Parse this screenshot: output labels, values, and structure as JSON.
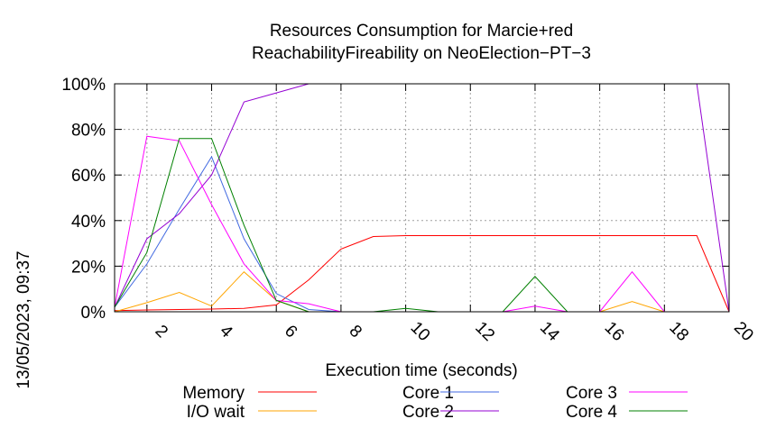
{
  "chart_data": {
    "type": "line",
    "title": [
      "Resources Consumption for Marcie+red",
      "ReachabilityFireability on NeoElection−PT−3"
    ],
    "xlabel": "Execution time (seconds)",
    "ylabel": "",
    "timestamp": "13/05/2023, 09:37",
    "xlim": [
      1,
      20
    ],
    "ylim": [
      0,
      100
    ],
    "xticks": [
      2,
      4,
      6,
      8,
      10,
      12,
      14,
      16,
      18,
      20
    ],
    "yticks": [
      0,
      20,
      40,
      60,
      80,
      100
    ],
    "ytick_labels": [
      "0%",
      "20%",
      "40%",
      "60%",
      "80%",
      "100%"
    ],
    "grid": true,
    "legend_position": "bottom",
    "series": [
      {
        "name": "Memory",
        "color": "#ff0000",
        "points": [
          [
            1,
            0.5
          ],
          [
            2,
            0.8
          ],
          [
            3,
            1
          ],
          [
            4,
            1.2
          ],
          [
            5,
            1.5
          ],
          [
            6,
            3
          ],
          [
            7,
            14
          ],
          [
            8,
            27.5
          ],
          [
            9,
            33
          ],
          [
            10,
            33.4
          ],
          [
            11,
            33.4
          ],
          [
            12,
            33.4
          ],
          [
            13,
            33.4
          ],
          [
            14,
            33.4
          ],
          [
            15,
            33.4
          ],
          [
            16,
            33.4
          ],
          [
            17,
            33.4
          ],
          [
            18,
            33.4
          ],
          [
            19,
            33.4
          ],
          [
            20,
            0
          ]
        ]
      },
      {
        "name": "I/O wait",
        "color": "#ffa500",
        "points": [
          [
            1,
            0
          ],
          [
            2,
            4
          ],
          [
            3,
            8.5
          ],
          [
            4,
            2.5
          ],
          [
            5,
            17.5
          ],
          [
            6,
            5
          ],
          [
            7,
            0
          ],
          [
            8,
            0
          ],
          [
            9,
            0
          ],
          [
            10,
            0
          ],
          [
            11,
            0
          ],
          [
            12,
            0
          ],
          [
            13,
            0
          ],
          [
            14,
            0
          ],
          [
            15,
            0
          ],
          [
            16,
            0
          ],
          [
            17,
            4.5
          ],
          [
            18,
            0
          ],
          [
            19,
            0
          ],
          [
            20,
            0
          ]
        ]
      },
      {
        "name": "Core 1",
        "color": "#4169e1",
        "points": [
          [
            1,
            2
          ],
          [
            2,
            21
          ],
          [
            3,
            45
          ],
          [
            4,
            68
          ],
          [
            5,
            32
          ],
          [
            6,
            8
          ],
          [
            7,
            1
          ],
          [
            8,
            0
          ],
          [
            9,
            0
          ],
          [
            10,
            0
          ],
          [
            11,
            0
          ],
          [
            12,
            0
          ],
          [
            13,
            0
          ],
          [
            14,
            0
          ],
          [
            15,
            0
          ],
          [
            16,
            0
          ],
          [
            17,
            0
          ],
          [
            18,
            0
          ],
          [
            19,
            0
          ],
          [
            20,
            0
          ]
        ]
      },
      {
        "name": "Core 2",
        "color": "#9400d3",
        "points": [
          [
            1,
            2
          ],
          [
            2,
            32
          ],
          [
            3,
            43
          ],
          [
            4,
            60
          ],
          [
            5,
            92
          ],
          [
            6,
            96
          ],
          [
            7,
            100
          ],
          [
            8,
            100
          ],
          [
            9,
            100
          ],
          [
            10,
            100
          ],
          [
            11,
            100
          ],
          [
            12,
            100
          ],
          [
            13,
            100
          ],
          [
            14,
            100
          ],
          [
            15,
            100
          ],
          [
            16,
            100
          ],
          [
            17,
            100
          ],
          [
            18,
            100
          ],
          [
            19,
            100
          ],
          [
            20,
            0
          ]
        ]
      },
      {
        "name": "Core 3",
        "color": "#ff00ff",
        "points": [
          [
            1,
            2
          ],
          [
            2,
            77
          ],
          [
            3,
            75
          ],
          [
            4,
            47
          ],
          [
            5,
            21
          ],
          [
            6,
            5
          ],
          [
            7,
            3.5
          ],
          [
            8,
            0
          ],
          [
            9,
            0
          ],
          [
            10,
            0
          ],
          [
            11,
            0
          ],
          [
            12,
            0
          ],
          [
            13,
            0
          ],
          [
            14,
            2.5
          ],
          [
            15,
            0
          ],
          [
            16,
            0
          ],
          [
            17,
            17.5
          ],
          [
            18,
            0
          ],
          [
            19,
            0
          ],
          [
            20,
            0
          ]
        ]
      },
      {
        "name": "Core 4",
        "color": "#008000",
        "points": [
          [
            1,
            2
          ],
          [
            2,
            26
          ],
          [
            3,
            76
          ],
          [
            4,
            76
          ],
          [
            5,
            38
          ],
          [
            6,
            5
          ],
          [
            7,
            0
          ],
          [
            8,
            0
          ],
          [
            9,
            0
          ],
          [
            10,
            1.5
          ],
          [
            11,
            0
          ],
          [
            12,
            0
          ],
          [
            13,
            0
          ],
          [
            14,
            15.5
          ],
          [
            15,
            0
          ],
          [
            16,
            0
          ],
          [
            17,
            0
          ],
          [
            18,
            0
          ],
          [
            19,
            0
          ],
          [
            20,
            0
          ]
        ]
      }
    ]
  }
}
